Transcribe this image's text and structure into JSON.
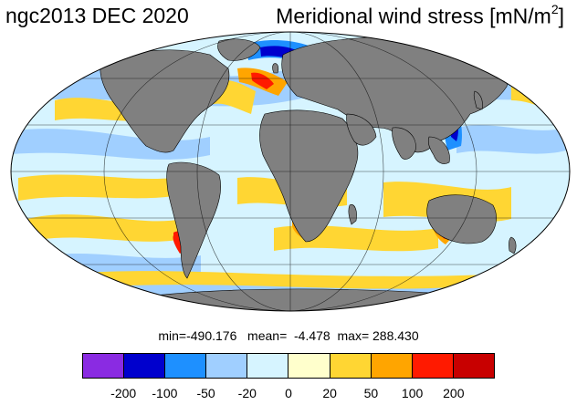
{
  "title": {
    "left": "ngc2013 DEC 2020",
    "right_text": "Meridional wind stress [mN/m",
    "right_sup": "2",
    "right_close": "]"
  },
  "stats": {
    "text": "min=-490.176   mean=  -4.478  max= 288.430"
  },
  "colorbar": {
    "colors": [
      "#8a2be2",
      "#0000cd",
      "#1e90ff",
      "#a0cfff",
      "#d6f4ff",
      "#ffffcc",
      "#ffd633",
      "#ffa500",
      "#ff1a00",
      "#c80000"
    ],
    "labels": [
      "-200",
      "-100",
      "-50",
      "-20",
      "0",
      "20",
      "50",
      "100",
      "200"
    ]
  },
  "map": {
    "ocean_color": "#d6f4ff",
    "land_color": "#808080",
    "projection": "mollweide"
  }
}
